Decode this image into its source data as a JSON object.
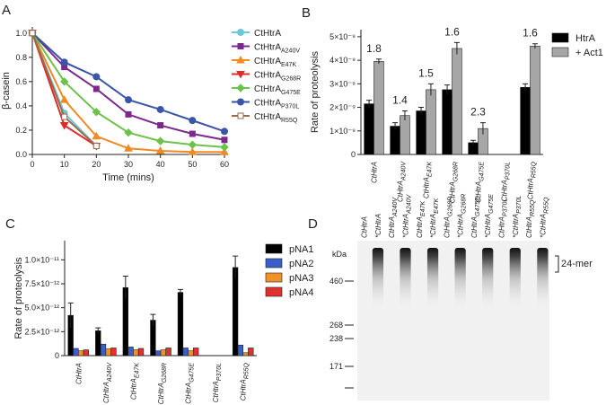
{
  "chart_data": [
    {
      "type": "line",
      "panel": "A",
      "ylabel": "β-casein",
      "xlabel": "Time (mins)",
      "x": [
        0,
        10,
        20,
        30,
        40,
        50,
        60
      ],
      "xlim": [
        0,
        60
      ],
      "xticks": [
        0,
        10,
        20,
        30,
        40,
        50,
        60
      ],
      "ylim": [
        0,
        1.05
      ],
      "yticks": [
        {
          "value": 0,
          "label": "0.0"
        },
        0.2,
        0.4,
        0.6,
        0.8,
        {
          "value": 1,
          "label": "1.0"
        }
      ],
      "series": [
        {
          "name": "CtHtrA",
          "sub": null,
          "color": "#6ec6da",
          "marker": "circle",
          "values": [
            1,
            0.34,
            0.07,
            null,
            null,
            null,
            null
          ]
        },
        {
          "name": "CtHtrA",
          "sub": "A240V",
          "color": "#7b2a8c",
          "marker": "square",
          "values": [
            1,
            0.72,
            0.54,
            0.33,
            0.24,
            0.17,
            0.12
          ]
        },
        {
          "name": "CtHtrA",
          "sub": "E47K",
          "color": "#f08a24",
          "marker": "triangle",
          "values": [
            1,
            0.45,
            0.15,
            0.05,
            0.03,
            0.02,
            0.02
          ]
        },
        {
          "name": "CtHtrA",
          "sub": "G268R",
          "color": "#e02a2a",
          "marker": "triangle-down",
          "values": [
            1,
            0.24,
            0.07,
            null,
            null,
            null,
            null
          ]
        },
        {
          "name": "CtHtrA",
          "sub": "G475E",
          "color": "#6cc24a",
          "marker": "diamond",
          "values": [
            1,
            0.6,
            0.35,
            0.18,
            0.11,
            0.08,
            0.06
          ]
        },
        {
          "name": "CtHtrA",
          "sub": "P370L",
          "color": "#3a55a6",
          "marker": "circle",
          "values": [
            1,
            0.76,
            0.64,
            0.45,
            0.37,
            0.28,
            0.19
          ]
        },
        {
          "name": "CtHtrA",
          "sub": "R55Q",
          "color": "#9a6a4a",
          "marker": "square-open",
          "values": [
            1,
            0.31,
            0.07,
            null,
            null,
            null,
            null
          ]
        }
      ]
    },
    {
      "type": "bar",
      "panel": "B",
      "ylabel": "Rate of proteolysis",
      "categories": [
        "CtHtrA",
        "CtHtrA",
        "CtHtrA",
        "CtHtrA",
        "CtHtrA",
        "CtHtrA",
        "CtHtrA"
      ],
      "category_subs": [
        null,
        "A240V",
        "E47K",
        "G268R",
        "G475E",
        "P370L",
        "R55Q"
      ],
      "ylim": [
        0,
        5.3e-09
      ],
      "yticks": [
        0,
        {
          "value": 1e-09,
          "label": "1×10⁻⁹"
        },
        {
          "value": 2e-09,
          "label": "2×10⁻⁹"
        },
        {
          "value": 3e-09,
          "label": "3×10⁻⁹"
        },
        {
          "value": 4e-09,
          "label": "4×10⁻⁹"
        },
        {
          "value": 5e-09,
          "label": "5×10⁻⁹"
        }
      ],
      "ratio_labels": [
        1.8,
        1.4,
        1.5,
        1.6,
        2.3,
        null,
        1.6
      ],
      "series": [
        {
          "name": "HtrA",
          "color": "#000000",
          "values": [
            2.15e-09,
            1.2e-09,
            1.85e-09,
            2.75e-09,
            5e-10,
            0,
            2.85e-09
          ],
          "errors": [
            1.5e-10,
            1.5e-10,
            1.5e-10,
            2e-10,
            1e-10,
            0,
            1.5e-10
          ]
        },
        {
          "name": "+ Act1",
          "color": "#a6a6a6",
          "values": [
            3.95e-09,
            1.65e-09,
            2.75e-09,
            4.5e-09,
            1.1e-09,
            0,
            4.6e-09
          ],
          "errors": [
            1e-10,
            2e-10,
            2.5e-10,
            2.5e-10,
            2.5e-10,
            0,
            1e-10
          ]
        }
      ]
    },
    {
      "type": "bar",
      "panel": "C",
      "ylabel": "Rate of proteolysis",
      "categories": [
        "CtHtrA",
        "CtHtrA",
        "CtHtrA",
        "CtHtrA",
        "CtHtrA",
        "CtHtrA",
        "CtHtrA"
      ],
      "category_subs": [
        null,
        "A240V",
        "E47K",
        "G268R",
        "G475E",
        "P370L",
        "R55Q"
      ],
      "ylim": [
        0,
        1.2e-11
      ],
      "yticks": [
        0,
        {
          "value": 2.5e-12,
          "label": "2.5×10⁻¹²"
        },
        {
          "value": 5e-12,
          "label": "5.0×10⁻¹²"
        },
        {
          "value": 7.5e-12,
          "label": "7.5×10⁻¹²"
        },
        {
          "value": 1e-11,
          "label": "1.0×10⁻¹¹"
        }
      ],
      "series": [
        {
          "name": "pNA1",
          "color": "#000000",
          "values": [
            4.2e-12,
            2.6e-12,
            7.1e-12,
            3.7e-12,
            6.6e-12,
            0,
            9.2e-12
          ],
          "errors": [
            1.3e-12,
            3e-13,
            1.2e-12,
            6e-13,
            3e-13,
            0,
            1.2e-12
          ]
        },
        {
          "name": "pNA2",
          "color": "#3a5fc8",
          "values": [
            7.5e-13,
            1.2e-12,
            9e-13,
            5e-13,
            8e-13,
            0,
            1.1e-12
          ]
        },
        {
          "name": "pNA3",
          "color": "#f0922b",
          "values": [
            5e-13,
            7e-13,
            6e-13,
            6e-13,
            5e-13,
            0,
            3e-13
          ]
        },
        {
          "name": "pNA4",
          "color": "#e03030",
          "values": [
            6e-13,
            8e-13,
            7.5e-13,
            8e-13,
            8e-13,
            0,
            8e-13
          ]
        }
      ]
    }
  ],
  "gel": {
    "panel": "D",
    "unit": "kDa",
    "markers": [
      "460",
      "268",
      "238",
      "171"
    ],
    "band_label": "24-mer",
    "lanes": [
      {
        "label": "CtHtrA",
        "sub": null
      },
      {
        "label": "*CtHtrA",
        "sub": null
      },
      {
        "label": "CtHtrA",
        "sub": "A240V"
      },
      {
        "label": "*CtHtrA",
        "sub": "A240V"
      },
      {
        "label": "CtHtrA",
        "sub": "E47K"
      },
      {
        "label": "*CtHtrA",
        "sub": "E47K"
      },
      {
        "label": "CtHtrA",
        "sub": "G268R"
      },
      {
        "label": "*CtHtrA",
        "sub": "G268R"
      },
      {
        "label": "CtHtrA",
        "sub": "G475E"
      },
      {
        "label": "*CtHtrA",
        "sub": "G475E"
      },
      {
        "label": "CtHtrA",
        "sub": "P370L"
      },
      {
        "label": "*CtHtrA",
        "sub": "P370L"
      },
      {
        "label": "CtHtrA",
        "sub": "R55Q"
      },
      {
        "label": "*CtHtrA",
        "sub": "R55Q"
      }
    ]
  }
}
